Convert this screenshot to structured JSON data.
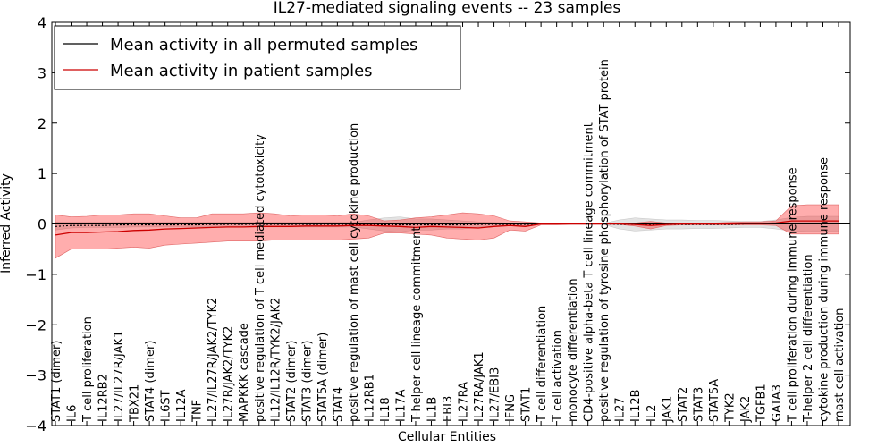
{
  "chart_data": {
    "type": "line",
    "title": "IL27-mediated signaling events -- 23 samples",
    "xlabel": "Cellular Entities",
    "ylabel": "Inferred Activity",
    "ylim": [
      -4,
      4
    ],
    "yticks": [
      -4,
      -3,
      -2,
      -1,
      0,
      1,
      2,
      3,
      4
    ],
    "ytick_labels": [
      "−4",
      "−3",
      "−2",
      "−1",
      "0",
      "1",
      "2",
      "3",
      "4"
    ],
    "grid": false,
    "legend_position": "top-left",
    "categories": [
      "STAT1 (dimer)",
      "IL6",
      "T cell proliferation",
      "IL12RB2",
      "IL27/IL27R/JAK1",
      "TBX21",
      "STAT4 (dimer)",
      "IL6ST",
      "IL12A",
      "TNF",
      "IL27/IL27R/JAK2/TYK2",
      "IL27R/JAK2/TYK2",
      "MAPKKK cascade",
      "positive regulation of T cell mediated cytotoxicity",
      "IL12/IL12R/TYK2/JAK2",
      "STAT2 (dimer)",
      "STAT3 (dimer)",
      "STAT5A (dimer)",
      "STAT4",
      "positive regulation of mast cell cytokine production",
      "IL12RB1",
      "IL18",
      "IL17A",
      "T-helper cell lineage commitment",
      "IL1B",
      "EBI3",
      "IL27RA",
      "IL27RA/JAK1",
      "IL27/EBI3",
      "IFNG",
      "STAT1",
      "T cell differentiation",
      "T cell activation",
      "monocyte differentiation",
      "CD4-positive alpha-beta T cell lineage commitment",
      "positive regulation of tyrosine phosphorylation of STAT protein",
      "IL27",
      "IL12B",
      "IL2",
      "JAK1",
      "STAT2",
      "STAT3",
      "STAT5A",
      "TYK2",
      "JAK2",
      "TGFB1",
      "GATA3",
      "T cell proliferation during immune response",
      "T-helper 2 cell differentiation",
      "cytokine production during immune response",
      "mast cell activation"
    ],
    "series": [
      {
        "name": "Mean activity in all permuted samples",
        "color": "#000000",
        "values": [
          -0.05,
          -0.03,
          -0.03,
          -0.03,
          -0.02,
          -0.02,
          -0.02,
          -0.02,
          -0.02,
          -0.02,
          -0.01,
          -0.01,
          -0.01,
          -0.01,
          -0.01,
          -0.01,
          -0.01,
          -0.01,
          -0.01,
          -0.01,
          -0.01,
          -0.02,
          -0.02,
          -0.02,
          -0.02,
          -0.02,
          -0.02,
          -0.01,
          -0.01,
          -0.01,
          -0.01,
          0.0,
          0.0,
          0.0,
          0.0,
          0.0,
          -0.01,
          -0.01,
          -0.01,
          -0.01,
          -0.01,
          -0.01,
          -0.01,
          -0.01,
          0.0,
          0.0,
          0.0,
          0.01,
          0.01,
          0.01,
          0.01
        ],
        "band_lower": [
          -0.12,
          -0.08,
          -0.07,
          -0.07,
          -0.07,
          -0.06,
          -0.06,
          -0.06,
          -0.06,
          -0.06,
          -0.06,
          -0.06,
          -0.06,
          -0.06,
          -0.06,
          -0.06,
          -0.06,
          -0.06,
          -0.06,
          -0.06,
          -0.1,
          -0.14,
          -0.16,
          -0.12,
          -0.12,
          -0.1,
          -0.1,
          -0.06,
          -0.05,
          -0.04,
          -0.03,
          -0.01,
          -0.01,
          -0.01,
          -0.01,
          -0.01,
          -0.1,
          -0.14,
          -0.12,
          -0.1,
          -0.1,
          -0.09,
          -0.09,
          -0.08,
          -0.07,
          -0.07,
          -0.1,
          -0.14,
          -0.15,
          -0.15,
          -0.15
        ],
        "band_upper": [
          0.04,
          0.03,
          0.03,
          0.03,
          0.03,
          0.03,
          0.03,
          0.03,
          0.03,
          0.03,
          0.03,
          0.03,
          0.03,
          0.03,
          0.03,
          0.03,
          0.03,
          0.03,
          0.03,
          0.03,
          0.08,
          0.12,
          0.14,
          0.1,
          0.1,
          0.08,
          0.06,
          0.04,
          0.03,
          0.02,
          0.02,
          0.01,
          0.01,
          0.01,
          0.01,
          0.01,
          0.08,
          0.12,
          0.1,
          0.08,
          0.08,
          0.07,
          0.07,
          0.06,
          0.05,
          0.05,
          0.08,
          0.13,
          0.15,
          0.15,
          0.15
        ]
      },
      {
        "name": "Mean activity in patient samples",
        "color": "#cc0000",
        "values": [
          -0.22,
          -0.17,
          -0.17,
          -0.16,
          -0.15,
          -0.13,
          -0.12,
          -0.1,
          -0.09,
          -0.08,
          -0.07,
          -0.06,
          -0.06,
          -0.05,
          -0.05,
          -0.05,
          -0.04,
          -0.04,
          -0.04,
          -0.03,
          -0.03,
          -0.04,
          -0.05,
          -0.07,
          -0.05,
          -0.06,
          -0.07,
          -0.08,
          -0.05,
          -0.03,
          -0.05,
          0.0,
          0.0,
          0.0,
          0.0,
          0.0,
          0.0,
          -0.01,
          -0.03,
          -0.01,
          0.0,
          0.0,
          0.0,
          0.0,
          0.01,
          0.01,
          0.02,
          0.06,
          0.06,
          0.06,
          0.06
        ],
        "band_lower": [
          -0.68,
          -0.5,
          -0.5,
          -0.5,
          -0.48,
          -0.46,
          -0.48,
          -0.42,
          -0.4,
          -0.38,
          -0.36,
          -0.34,
          -0.34,
          -0.34,
          -0.32,
          -0.32,
          -0.32,
          -0.32,
          -0.32,
          -0.3,
          -0.28,
          -0.18,
          -0.18,
          -0.2,
          -0.22,
          -0.28,
          -0.3,
          -0.32,
          -0.28,
          -0.12,
          -0.14,
          -0.02,
          -0.02,
          -0.01,
          -0.01,
          -0.01,
          -0.01,
          -0.04,
          -0.1,
          -0.03,
          -0.02,
          -0.02,
          -0.02,
          -0.02,
          -0.02,
          -0.02,
          -0.03,
          -0.2,
          -0.2,
          -0.2,
          -0.2
        ],
        "band_upper": [
          0.18,
          0.14,
          0.15,
          0.18,
          0.18,
          0.2,
          0.2,
          0.16,
          0.12,
          0.12,
          0.2,
          0.2,
          0.2,
          0.22,
          0.2,
          0.16,
          0.18,
          0.18,
          0.16,
          0.2,
          0.16,
          0.06,
          0.08,
          0.12,
          0.14,
          0.18,
          0.22,
          0.2,
          0.16,
          0.06,
          0.04,
          0.02,
          0.02,
          0.01,
          0.01,
          0.01,
          0.02,
          0.02,
          0.05,
          0.02,
          0.02,
          0.02,
          0.02,
          0.03,
          0.04,
          0.04,
          0.06,
          0.36,
          0.38,
          0.38,
          0.38
        ]
      }
    ]
  },
  "colors": {
    "background": "#ffffff",
    "axis": "#000000",
    "patient_band": "#ff0000",
    "permuted_band": "#b0b0b0",
    "zero_line": "#000000"
  }
}
